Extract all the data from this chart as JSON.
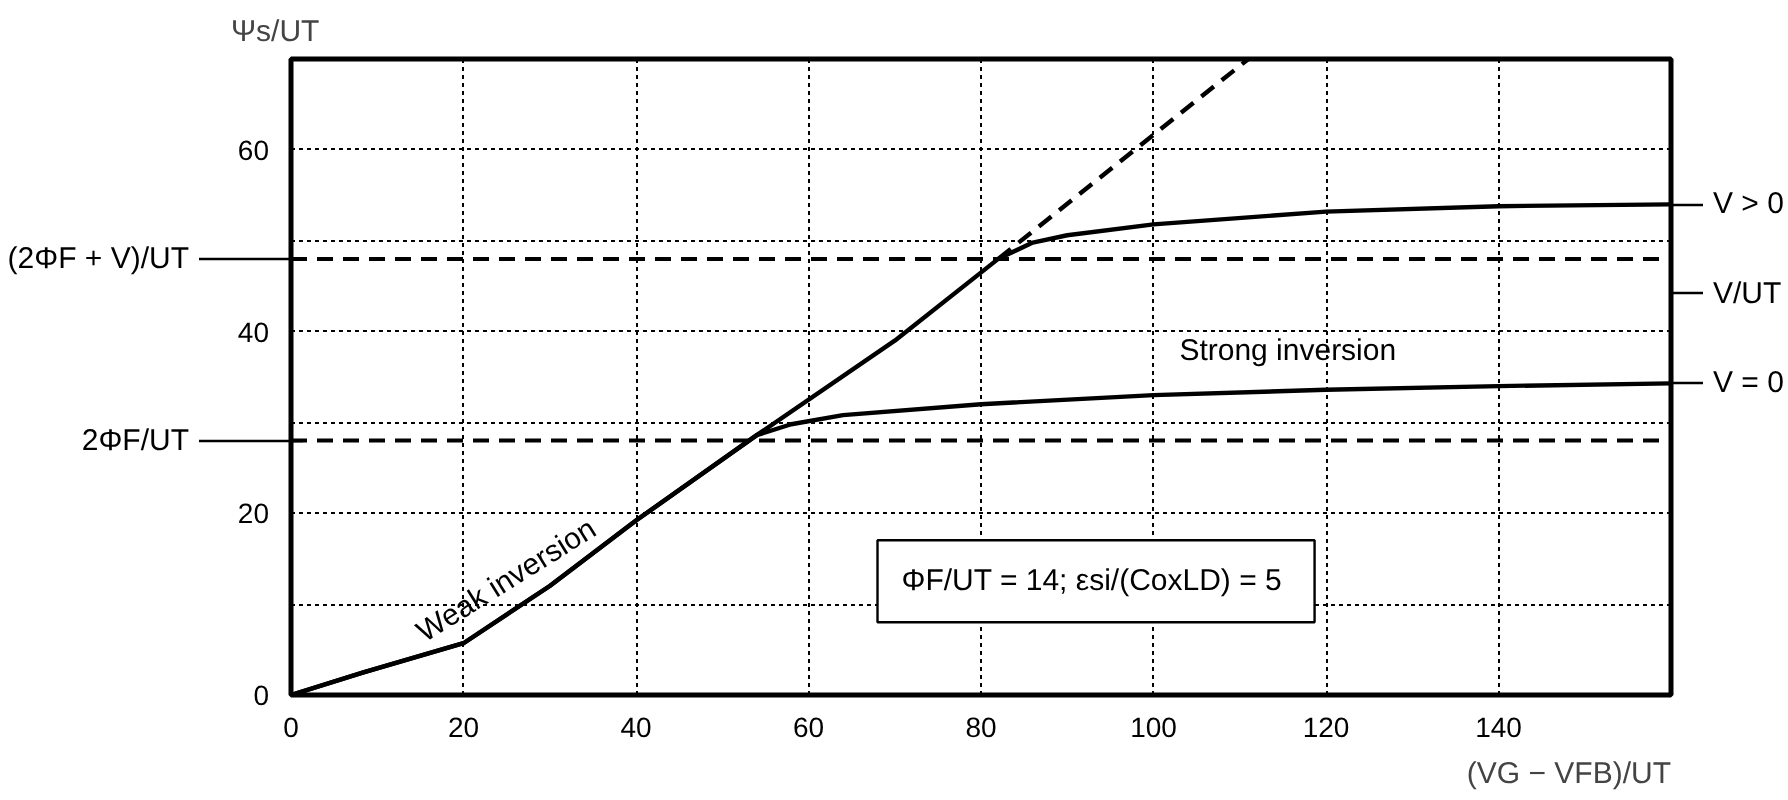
{
  "chart_data": {
    "type": "line",
    "xlabel": "(VG − VFB)/UT",
    "ylabel": "Ψs/UT",
    "xlim": [
      0,
      160
    ],
    "ylim": [
      0,
      70
    ],
    "xticks": [
      0,
      20,
      40,
      60,
      80,
      100,
      120,
      140
    ],
    "yticks": [
      0,
      {
        "value": 10,
        "label": null
      },
      20,
      {
        "value": 30,
        "label": null
      },
      40,
      {
        "value": 50,
        "label": null
      },
      60
    ],
    "grid": true,
    "legend": "right",
    "line_style": "solid",
    "marker": "none",
    "series": [
      {
        "name": "V > 0",
        "color": "#000000",
        "x": [
          0,
          8.4,
          20,
          30,
          40,
          54,
          70,
          82,
          86,
          90,
          100,
          120,
          140,
          160
        ],
        "values": [
          0,
          2.5,
          5.7,
          12,
          19.2,
          28.6,
          39,
          48,
          49.8,
          50.6,
          51.8,
          53.2,
          53.8,
          54
        ]
      },
      {
        "name": "V = 0",
        "color": "#000000",
        "x": [
          0,
          8.4,
          20,
          30,
          40,
          54,
          58,
          64,
          80,
          100,
          120,
          140,
          160
        ],
        "values": [
          0,
          2.5,
          5.7,
          12,
          19.2,
          28.6,
          29.8,
          30.8,
          32,
          33,
          33.6,
          34,
          34.3
        ]
      },
      {
        "color": "#000000",
        "line_style": "dashed",
        "x": [
          82,
          111
        ],
        "values": [
          48,
          70
        ]
      }
    ],
    "ref_lines": [
      {
        "axis": "y",
        "value": 48,
        "label": "(2ΦF + V)/UT",
        "color": "#000000",
        "line_style": "dashed"
      },
      {
        "axis": "y",
        "value": 28,
        "label": "2ΦF/UT",
        "color": "#000000",
        "line_style": "dashed"
      }
    ],
    "annotations": [
      "Weak inversion",
      "Strong inversion",
      "V/UT",
      "ΦF/UT = 14;  εsi/(CoxLD) = 5"
    ]
  }
}
